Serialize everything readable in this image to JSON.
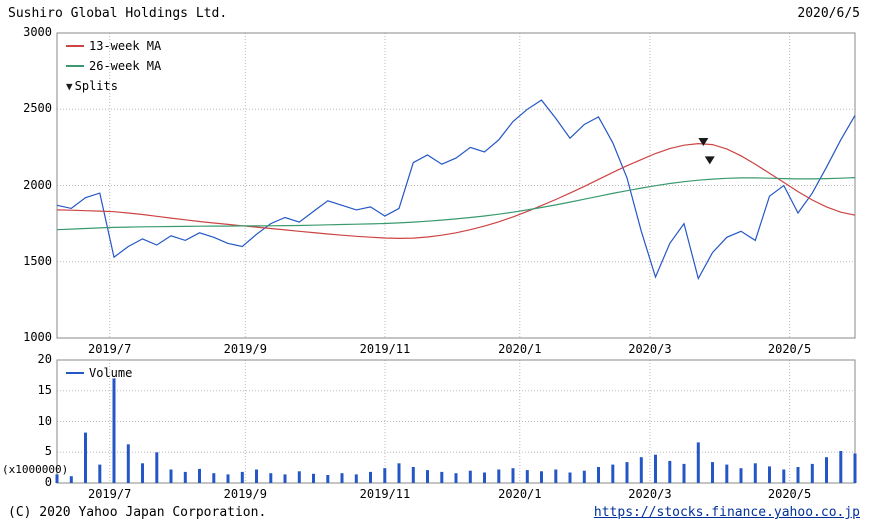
{
  "header": {
    "title": "Sushiro Global Holdings Ltd.",
    "date": "2020/6/5"
  },
  "footer": {
    "copyright": "(C) 2020 Yahoo Japan Corporation.",
    "link": "https://stocks.finance.yahoo.co.jp"
  },
  "icons": {
    "split_marker": "▼"
  },
  "colors": {
    "price": "#2457c5",
    "ma13": "#cc4444",
    "ma26": "#3a9a6e",
    "volume": "#2457c5",
    "splits": "#1a1a1a",
    "grid": "#bbbbbb",
    "border": "#888888",
    "text": "#000000",
    "link": "#00309c"
  },
  "chart_data": [
    {
      "type": "line",
      "title": "price",
      "x_range": [
        "2019/6",
        "2020/6/5"
      ],
      "frequency": "weekly",
      "ylim": [
        1000,
        3000
      ],
      "yticks": [
        3000,
        2500,
        2000,
        1500,
        1000
      ],
      "xticks": [
        {
          "label": "2019/7",
          "f": 0.066
        },
        {
          "label": "2019/9",
          "f": 0.236
        },
        {
          "label": "2019/11",
          "f": 0.411
        },
        {
          "label": "2020/1",
          "f": 0.58
        },
        {
          "label": "2020/3",
          "f": 0.743
        },
        {
          "label": "2020/5",
          "f": 0.918
        }
      ],
      "legend": {
        "ma13": "13-week MA",
        "ma26": "26-week MA",
        "splits": "Splits"
      },
      "series": [
        {
          "name": "price",
          "color_key": "price",
          "values": [
            1870,
            1850,
            1920,
            1950,
            1530,
            1600,
            1650,
            1610,
            1670,
            1640,
            1690,
            1660,
            1620,
            1600,
            1680,
            1750,
            1790,
            1760,
            1830,
            1900,
            1870,
            1840,
            1860,
            1800,
            1850,
            2150,
            2200,
            2140,
            2180,
            2250,
            2220,
            2300,
            2420,
            2500,
            2560,
            2440,
            2310,
            2400,
            2450,
            2280,
            2050,
            1700,
            1400,
            1620,
            1750,
            1390,
            1560,
            1660,
            1700,
            1640,
            1930,
            2000,
            1820,
            1950,
            2120,
            2300,
            2460
          ]
        },
        {
          "name": "13-week MA",
          "color_key": "ma13",
          "values": [
            1840,
            1838,
            1835,
            1832,
            1828,
            1820,
            1810,
            1798,
            1786,
            1775,
            1764,
            1754,
            1745,
            1736,
            1727,
            1718,
            1709,
            1700,
            1691,
            1682,
            1674,
            1667,
            1661,
            1656,
            1653,
            1655,
            1662,
            1674,
            1690,
            1710,
            1734,
            1762,
            1794,
            1830,
            1868,
            1908,
            1950,
            1994,
            2040,
            2086,
            2130,
            2170,
            2210,
            2242,
            2264,
            2275,
            2268,
            2240,
            2195,
            2140,
            2080,
            2020,
            1960,
            1905,
            1860,
            1825,
            1805
          ]
        },
        {
          "name": "26-week MA",
          "color_key": "ma26",
          "values": [
            1710,
            1714,
            1718,
            1722,
            1725,
            1727,
            1729,
            1730,
            1731,
            1732,
            1733,
            1734,
            1734,
            1735,
            1735,
            1736,
            1737,
            1738,
            1740,
            1742,
            1744,
            1746,
            1748,
            1751,
            1755,
            1760,
            1766,
            1773,
            1781,
            1790,
            1800,
            1812,
            1825,
            1840,
            1856,
            1873,
            1891,
            1910,
            1929,
            1948,
            1966,
            1983,
            1999,
            2013,
            2025,
            2035,
            2042,
            2047,
            2050,
            2050,
            2048,
            2045,
            2043,
            2043,
            2045,
            2048,
            2052
          ]
        }
      ],
      "splits_markers": [
        {
          "f": 0.81,
          "price": 2285
        },
        {
          "f": 0.818,
          "price": 2165
        }
      ]
    },
    {
      "type": "bar",
      "title": "volume",
      "unit_label": "(x1000000)",
      "legend": {
        "volume": "Volume"
      },
      "ylim": [
        0,
        20
      ],
      "yticks": [
        20,
        15,
        10,
        5,
        0
      ],
      "xticks": [
        {
          "label": "2019/7",
          "f": 0.066
        },
        {
          "label": "2019/9",
          "f": 0.236
        },
        {
          "label": "2019/11",
          "f": 0.411
        },
        {
          "label": "2020/1",
          "f": 0.58
        },
        {
          "label": "2020/3",
          "f": 0.743
        },
        {
          "label": "2020/5",
          "f": 0.918
        }
      ],
      "values": [
        1.4,
        1.1,
        8.2,
        3.0,
        17.0,
        6.3,
        3.2,
        5.0,
        2.2,
        1.8,
        2.3,
        1.6,
        1.4,
        1.8,
        2.2,
        1.6,
        1.4,
        1.9,
        1.5,
        1.3,
        1.6,
        1.4,
        1.8,
        2.4,
        3.2,
        2.6,
        2.1,
        1.8,
        1.6,
        2.0,
        1.7,
        2.2,
        2.4,
        2.1,
        1.9,
        2.2,
        1.7,
        2.0,
        2.6,
        3.0,
        3.4,
        4.2,
        4.6,
        3.6,
        3.1,
        6.6,
        3.4,
        3.0,
        2.4,
        3.2,
        2.7,
        2.2,
        2.6,
        3.1,
        4.2,
        5.2,
        4.8
      ]
    }
  ]
}
